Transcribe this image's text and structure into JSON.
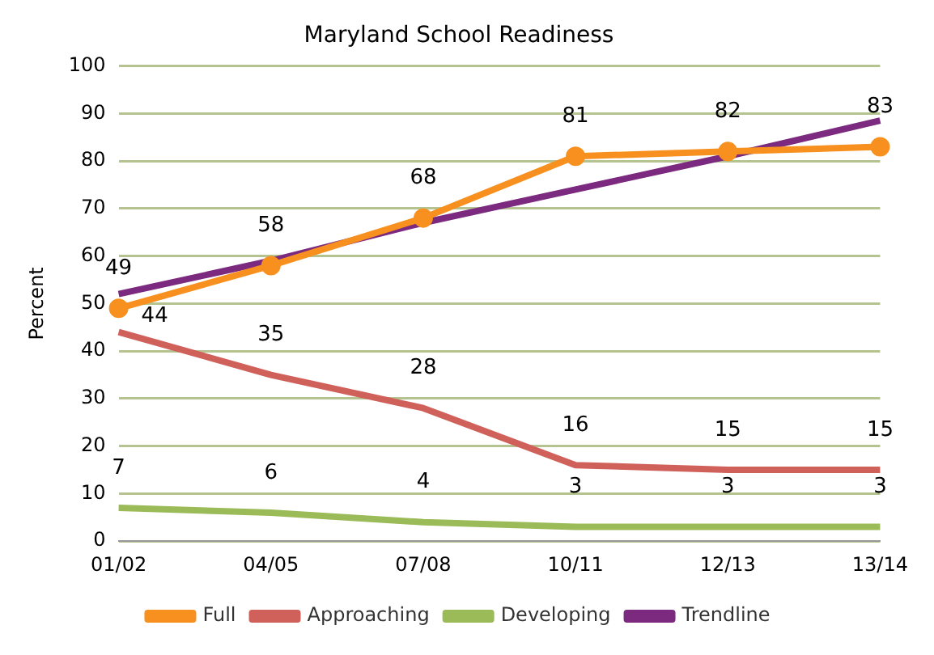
{
  "chart_data": {
    "type": "line",
    "title": "Maryland School Readiness",
    "ylabel": "Percent",
    "categories": [
      "01/02",
      "04/05",
      "07/08",
      "10/11",
      "12/13",
      "13/14"
    ],
    "series": [
      {
        "name": "Full",
        "color": "#f7901e",
        "marker": "circle",
        "values": [
          49,
          58,
          68,
          81,
          82,
          83
        ],
        "value_labels": [
          "49",
          "58",
          "68",
          "81",
          "82",
          "83"
        ]
      },
      {
        "name": "Approaching",
        "color": "#d0605a",
        "marker": "none",
        "values": [
          44,
          35,
          28,
          16,
          15,
          15
        ],
        "value_labels": [
          "44",
          "35",
          "28",
          "16",
          "15",
          "15"
        ]
      },
      {
        "name": "Developing",
        "color": "#9bbb59",
        "marker": "none",
        "values": [
          7,
          6,
          4,
          3,
          3,
          3
        ],
        "value_labels": [
          "7",
          "6",
          "4",
          "3",
          "3",
          "3"
        ]
      },
      {
        "name": "Trendline",
        "color": "#7b2a7f",
        "marker": "none",
        "values": [
          52,
          59,
          67,
          74,
          81,
          88.5
        ]
      }
    ],
    "ylim": [
      0,
      100
    ],
    "yticks": [
      0,
      10,
      20,
      30,
      40,
      50,
      60,
      70,
      80,
      90,
      100
    ],
    "grid": "y",
    "legend": "bottom"
  }
}
